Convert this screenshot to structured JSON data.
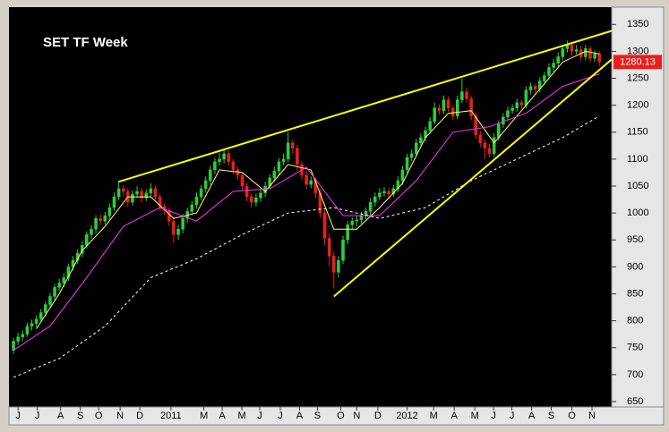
{
  "chart_data": {
    "type": "candlestick",
    "title": "SET TF Week",
    "up_color": "#2ecc40",
    "down_color": "#e8201c",
    "ylim": [
      640,
      1382
    ],
    "yticks": [
      650,
      700,
      750,
      800,
      850,
      900,
      950,
      1000,
      1050,
      1100,
      1150,
      1200,
      1250,
      1300,
      1350
    ],
    "xlim": [
      -0.6,
      130.7
    ],
    "xticks": [
      {
        "value": 1,
        "label": "J"
      },
      {
        "value": 5.2,
        "label": "J"
      },
      {
        "value": 10.3,
        "label": "A"
      },
      {
        "value": 14.6,
        "label": "S"
      },
      {
        "value": 18.6,
        "label": "O"
      },
      {
        "value": 23.3,
        "label": "N"
      },
      {
        "value": 27.6,
        "label": "D"
      },
      {
        "value": 34.4,
        "label": "2011"
      },
      {
        "value": 41.6,
        "label": "M"
      },
      {
        "value": 45.6,
        "label": "A"
      },
      {
        "value": 49.9,
        "label": "M"
      },
      {
        "value": 53.8,
        "label": "J"
      },
      {
        "value": 58.3,
        "label": "J"
      },
      {
        "value": 62.5,
        "label": "A"
      },
      {
        "value": 66.4,
        "label": "S"
      },
      {
        "value": 71.5,
        "label": "O"
      },
      {
        "value": 75,
        "label": "N"
      },
      {
        "value": 79.6,
        "label": "D"
      },
      {
        "value": 86,
        "label": "2012"
      },
      {
        "value": 91.8,
        "label": "M"
      },
      {
        "value": 96.3,
        "label": "A"
      },
      {
        "value": 100.8,
        "label": "M"
      },
      {
        "value": 104.9,
        "label": "J"
      },
      {
        "value": 108.9,
        "label": "J"
      },
      {
        "value": 113.2,
        "label": "A"
      },
      {
        "value": 117.5,
        "label": "S"
      },
      {
        "value": 122,
        "label": "O"
      },
      {
        "value": 126.4,
        "label": "N"
      }
    ],
    "ohlc": [
      [
        745,
        768,
        738,
        762
      ],
      [
        762,
        778,
        755,
        770
      ],
      [
        770,
        782,
        762,
        775
      ],
      [
        775,
        796,
        770,
        790
      ],
      [
        790,
        802,
        782,
        795
      ],
      [
        795,
        810,
        788,
        803
      ],
      [
        803,
        822,
        798,
        815
      ],
      [
        815,
        836,
        808,
        830
      ],
      [
        830,
        852,
        824,
        845
      ],
      [
        845,
        868,
        838,
        862
      ],
      [
        862,
        878,
        855,
        870
      ],
      [
        870,
        888,
        862,
        880
      ],
      [
        880,
        906,
        874,
        900
      ],
      [
        900,
        920,
        893,
        912
      ],
      [
        912,
        932,
        905,
        925
      ],
      [
        925,
        948,
        918,
        940
      ],
      [
        940,
        966,
        934,
        960
      ],
      [
        960,
        978,
        952,
        970
      ],
      [
        970,
        996,
        962,
        990
      ],
      [
        990,
        998,
        978,
        985
      ],
      [
        985,
        1002,
        978,
        995
      ],
      [
        995,
        1018,
        988,
        1010
      ],
      [
        1010,
        1038,
        1004,
        1030
      ],
      [
        1030,
        1060,
        1024,
        1045
      ],
      [
        1045,
        1052,
        1032,
        1040
      ],
      [
        1040,
        1046,
        1012,
        1020
      ],
      [
        1020,
        1042,
        1014,
        1035
      ],
      [
        1035,
        1050,
        1028,
        1040
      ],
      [
        1040,
        1046,
        1020,
        1028
      ],
      [
        1028,
        1044,
        1022,
        1037
      ],
      [
        1037,
        1055,
        1030,
        1045
      ],
      [
        1045,
        1050,
        1024,
        1030
      ],
      [
        1030,
        1036,
        1004,
        1012
      ],
      [
        1012,
        1018,
        996,
        1005
      ],
      [
        1005,
        1010,
        976,
        985
      ],
      [
        985,
        992,
        945,
        960
      ],
      [
        960,
        978,
        950,
        970
      ],
      [
        970,
        998,
        962,
        990
      ],
      [
        990,
        1010,
        982,
        1003
      ],
      [
        1003,
        1022,
        996,
        1015
      ],
      [
        1015,
        1038,
        1008,
        1030
      ],
      [
        1030,
        1052,
        1024,
        1045
      ],
      [
        1045,
        1068,
        1038,
        1060
      ],
      [
        1060,
        1088,
        1052,
        1080
      ],
      [
        1080,
        1102,
        1072,
        1095
      ],
      [
        1095,
        1112,
        1088,
        1100
      ],
      [
        1100,
        1118,
        1092,
        1110
      ],
      [
        1110,
        1116,
        1088,
        1095
      ],
      [
        1095,
        1100,
        1072,
        1080
      ],
      [
        1080,
        1086,
        1062,
        1070
      ],
      [
        1070,
        1076,
        1042,
        1050
      ],
      [
        1050,
        1056,
        1022,
        1030
      ],
      [
        1030,
        1036,
        1010,
        1020
      ],
      [
        1020,
        1036,
        1012,
        1028
      ],
      [
        1028,
        1045,
        1020,
        1037
      ],
      [
        1037,
        1058,
        1030,
        1050
      ],
      [
        1050,
        1072,
        1044,
        1065
      ],
      [
        1065,
        1086,
        1058,
        1078
      ],
      [
        1078,
        1102,
        1070,
        1095
      ],
      [
        1095,
        1110,
        1088,
        1100
      ],
      [
        1100,
        1150,
        1094,
        1130
      ],
      [
        1130,
        1136,
        1110,
        1120
      ],
      [
        1120,
        1126,
        1080,
        1090
      ],
      [
        1090,
        1096,
        1062,
        1070
      ],
      [
        1070,
        1078,
        1044,
        1053
      ],
      [
        1053,
        1068,
        1046,
        1060
      ],
      [
        1060,
        1066,
        1028,
        1037
      ],
      [
        1037,
        1044,
        992,
        1000
      ],
      [
        1000,
        1008,
        940,
        953
      ],
      [
        953,
        962,
        900,
        920
      ],
      [
        920,
        928,
        860,
        890
      ],
      [
        890,
        920,
        880,
        912
      ],
      [
        912,
        958,
        905,
        950
      ],
      [
        950,
        985,
        942,
        978
      ],
      [
        978,
        992,
        970,
        985
      ],
      [
        985,
        996,
        975,
        987
      ],
      [
        987,
        1002,
        980,
        995
      ],
      [
        995,
        1010,
        988,
        1003
      ],
      [
        1003,
        1028,
        996,
        1020
      ],
      [
        1020,
        1038,
        1012,
        1030
      ],
      [
        1030,
        1046,
        1024,
        1037
      ],
      [
        1037,
        1048,
        1030,
        1040
      ],
      [
        1040,
        1046,
        1028,
        1035
      ],
      [
        1035,
        1052,
        1030,
        1045
      ],
      [
        1045,
        1068,
        1038,
        1060
      ],
      [
        1060,
        1088,
        1052,
        1080
      ],
      [
        1080,
        1110,
        1074,
        1103
      ],
      [
        1103,
        1118,
        1096,
        1110
      ],
      [
        1110,
        1138,
        1104,
        1130
      ],
      [
        1130,
        1148,
        1122,
        1140
      ],
      [
        1140,
        1160,
        1132,
        1153
      ],
      [
        1153,
        1178,
        1146,
        1170
      ],
      [
        1170,
        1205,
        1164,
        1195
      ],
      [
        1195,
        1202,
        1182,
        1190
      ],
      [
        1190,
        1218,
        1184,
        1210
      ],
      [
        1210,
        1216,
        1188,
        1195
      ],
      [
        1195,
        1200,
        1172,
        1180
      ],
      [
        1180,
        1218,
        1174,
        1210
      ],
      [
        1210,
        1250,
        1204,
        1225
      ],
      [
        1225,
        1232,
        1205,
        1212
      ],
      [
        1212,
        1218,
        1172,
        1180
      ],
      [
        1180,
        1186,
        1138,
        1145
      ],
      [
        1145,
        1152,
        1122,
        1130
      ],
      [
        1130,
        1136,
        1100,
        1120
      ],
      [
        1120,
        1128,
        1104,
        1110
      ],
      [
        1110,
        1148,
        1104,
        1140
      ],
      [
        1140,
        1172,
        1134,
        1165
      ],
      [
        1165,
        1185,
        1158,
        1178
      ],
      [
        1178,
        1198,
        1172,
        1190
      ],
      [
        1190,
        1202,
        1184,
        1195
      ],
      [
        1195,
        1212,
        1188,
        1205
      ],
      [
        1205,
        1210,
        1192,
        1200
      ],
      [
        1200,
        1235,
        1194,
        1228
      ],
      [
        1228,
        1242,
        1220,
        1235
      ],
      [
        1235,
        1240,
        1222,
        1230
      ],
      [
        1230,
        1252,
        1224,
        1245
      ],
      [
        1245,
        1262,
        1238,
        1255
      ],
      [
        1255,
        1278,
        1248,
        1270
      ],
      [
        1270,
        1286,
        1262,
        1278
      ],
      [
        1278,
        1298,
        1272,
        1290
      ],
      [
        1290,
        1312,
        1284,
        1305
      ],
      [
        1305,
        1320,
        1298,
        1312
      ],
      [
        1312,
        1318,
        1292,
        1300
      ],
      [
        1300,
        1312,
        1294,
        1303
      ],
      [
        1303,
        1310,
        1282,
        1290
      ],
      [
        1290,
        1312,
        1284,
        1305
      ],
      [
        1305,
        1310,
        1280,
        1287
      ],
      [
        1287,
        1302,
        1280,
        1295
      ],
      [
        1295,
        1300,
        1272,
        1280.13
      ]
    ],
    "series": [
      {
        "color": "#ffff66",
        "dash": false,
        "x": [
          5,
          10,
          15,
          20,
          25,
          30,
          35,
          40,
          45,
          50,
          55,
          60,
          65,
          70,
          75,
          80,
          85,
          90,
          95,
          100,
          105,
          110,
          115,
          120,
          125,
          128
        ],
        "values": [
          785,
          850,
          930,
          975,
          1030,
          1030,
          990,
          1000,
          1080,
          1075,
          1040,
          1090,
          1080,
          970,
          970,
          1010,
          1055,
          1140,
          1185,
          1190,
          1130,
          1180,
          1230,
          1280,
          1300,
          1295
        ]
      },
      {
        "color": "#ff33ff",
        "dash": false,
        "x": [
          0,
          8,
          16,
          24,
          32,
          40,
          48,
          56,
          64,
          72,
          80,
          88,
          96,
          104,
          112,
          120,
          128
        ],
        "values": [
          745,
          790,
          880,
          975,
          1010,
          985,
          1040,
          1045,
          1085,
          995,
          995,
          1060,
          1150,
          1160,
          1185,
          1235,
          1258
        ]
      },
      {
        "color": "#ffffff",
        "dash": true,
        "x": [
          0,
          10,
          20,
          30,
          40,
          50,
          60,
          70,
          80,
          90,
          100,
          110,
          120,
          128
        ],
        "values": [
          695,
          730,
          790,
          880,
          915,
          960,
          1000,
          1010,
          990,
          1010,
          1060,
          1100,
          1140,
          1180
        ]
      }
    ],
    "trendlines": [
      {
        "color": "#ffff00",
        "x": [
          23,
          130.7
        ],
        "y": [
          1058,
          1338
        ]
      },
      {
        "color": "#ffff00",
        "x": [
          70,
          130.7
        ],
        "y": [
          845,
          1285
        ]
      }
    ]
  }
}
